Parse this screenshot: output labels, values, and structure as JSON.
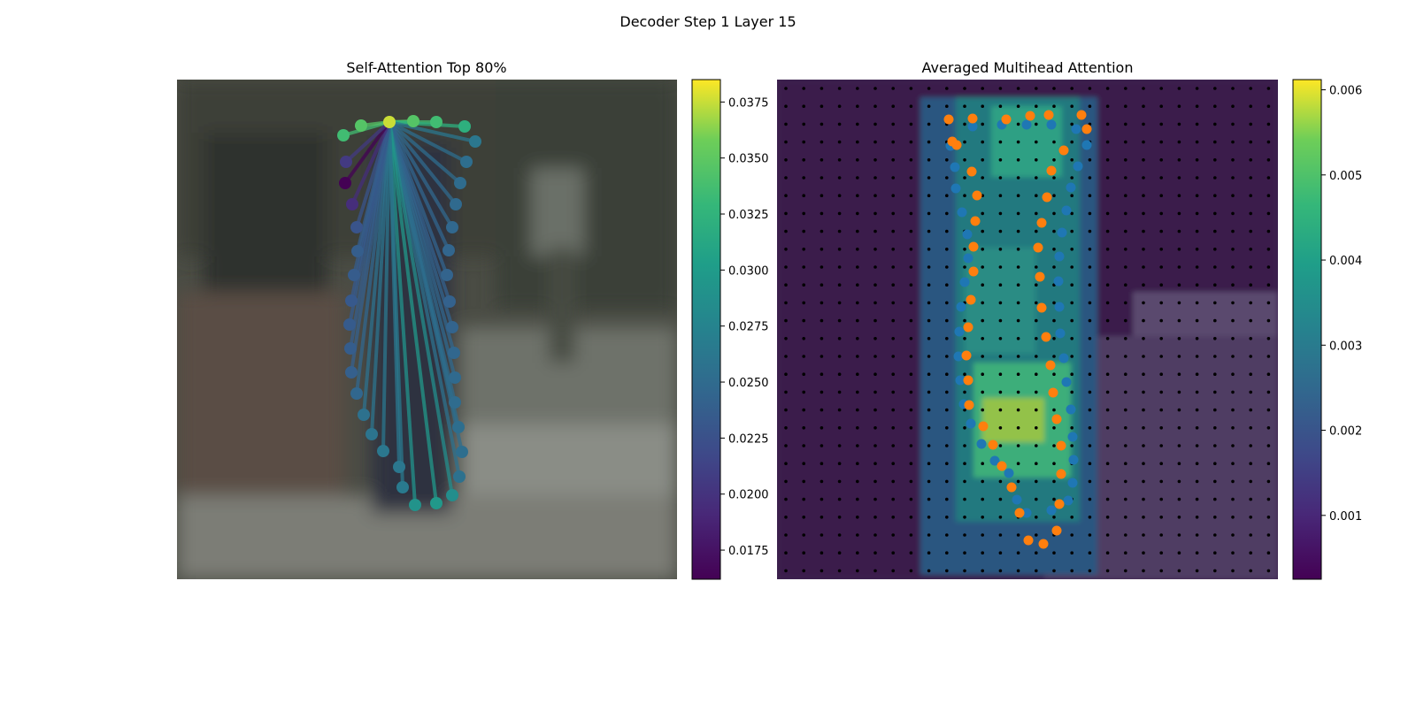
{
  "figure": {
    "title": "Decoder Step 1 Layer 15"
  },
  "chart_data": [
    {
      "type": "scatter",
      "title": "Self-Attention Top 80%",
      "description_kind": "self-attention graph over contour points on photo background",
      "source_point": [
        440,
        138
      ],
      "points": [
        {
          "x": 388,
          "y": 153,
          "v": 0.0335
        },
        {
          "x": 408,
          "y": 142,
          "v": 0.0345
        },
        {
          "x": 440,
          "y": 138,
          "v": 0.0375
        },
        {
          "x": 467,
          "y": 137,
          "v": 0.0345
        },
        {
          "x": 493,
          "y": 138,
          "v": 0.0335
        },
        {
          "x": 525,
          "y": 143,
          "v": 0.032
        },
        {
          "x": 537,
          "y": 160,
          "v": 0.0262
        },
        {
          "x": 527,
          "y": 183,
          "v": 0.0252
        },
        {
          "x": 520,
          "y": 207,
          "v": 0.025
        },
        {
          "x": 515,
          "y": 231,
          "v": 0.0248
        },
        {
          "x": 511,
          "y": 257,
          "v": 0.0246
        },
        {
          "x": 507,
          "y": 283,
          "v": 0.0244
        },
        {
          "x": 505,
          "y": 311,
          "v": 0.0242
        },
        {
          "x": 508,
          "y": 341,
          "v": 0.024
        },
        {
          "x": 511,
          "y": 370,
          "v": 0.0242
        },
        {
          "x": 513,
          "y": 399,
          "v": 0.0245
        },
        {
          "x": 514,
          "y": 427,
          "v": 0.0248
        },
        {
          "x": 514,
          "y": 455,
          "v": 0.025
        },
        {
          "x": 518,
          "y": 483,
          "v": 0.0252
        },
        {
          "x": 522,
          "y": 511,
          "v": 0.0252
        },
        {
          "x": 519,
          "y": 539,
          "v": 0.0255
        },
        {
          "x": 511,
          "y": 560,
          "v": 0.0285
        },
        {
          "x": 493,
          "y": 569,
          "v": 0.0295
        },
        {
          "x": 469,
          "y": 571,
          "v": 0.029
        },
        {
          "x": 455,
          "y": 551,
          "v": 0.0265
        },
        {
          "x": 451,
          "y": 528,
          "v": 0.0262
        },
        {
          "x": 433,
          "y": 510,
          "v": 0.0262
        },
        {
          "x": 420,
          "y": 491,
          "v": 0.0258
        },
        {
          "x": 411,
          "y": 469,
          "v": 0.0255
        },
        {
          "x": 403,
          "y": 445,
          "v": 0.0245
        },
        {
          "x": 397,
          "y": 421,
          "v": 0.0238
        },
        {
          "x": 396,
          "y": 394,
          "v": 0.0236
        },
        {
          "x": 395,
          "y": 367,
          "v": 0.0234
        },
        {
          "x": 397,
          "y": 340,
          "v": 0.0232
        },
        {
          "x": 400,
          "y": 311,
          "v": 0.0235
        },
        {
          "x": 404,
          "y": 284,
          "v": 0.0237
        },
        {
          "x": 403,
          "y": 257,
          "v": 0.0228
        },
        {
          "x": 398,
          "y": 231,
          "v": 0.0195
        },
        {
          "x": 390,
          "y": 207,
          "v": 0.0162
        },
        {
          "x": 391,
          "y": 183,
          "v": 0.0205
        }
      ],
      "colorbar": {
        "min": 0.0162,
        "max": 0.0385,
        "ticks": [
          "0.0175",
          "0.0200",
          "0.0225",
          "0.0250",
          "0.0275",
          "0.0300",
          "0.0325",
          "0.0350",
          "0.0375"
        ]
      }
    },
    {
      "type": "heatmap",
      "title": "Averaged Multihead Attention",
      "colorbar": {
        "min": 0.00025,
        "max": 0.00612,
        "ticks": [
          "0.001",
          "0.002",
          "0.003",
          "0.004",
          "0.005",
          "0.006"
        ]
      },
      "series": [
        {
          "name": "blue points",
          "color": "#1f77b4"
        },
        {
          "name": "orange points",
          "color": "#ff7f0e"
        }
      ]
    }
  ],
  "colors": {
    "blue": "#1f77b4",
    "orange": "#ff7f0e"
  }
}
